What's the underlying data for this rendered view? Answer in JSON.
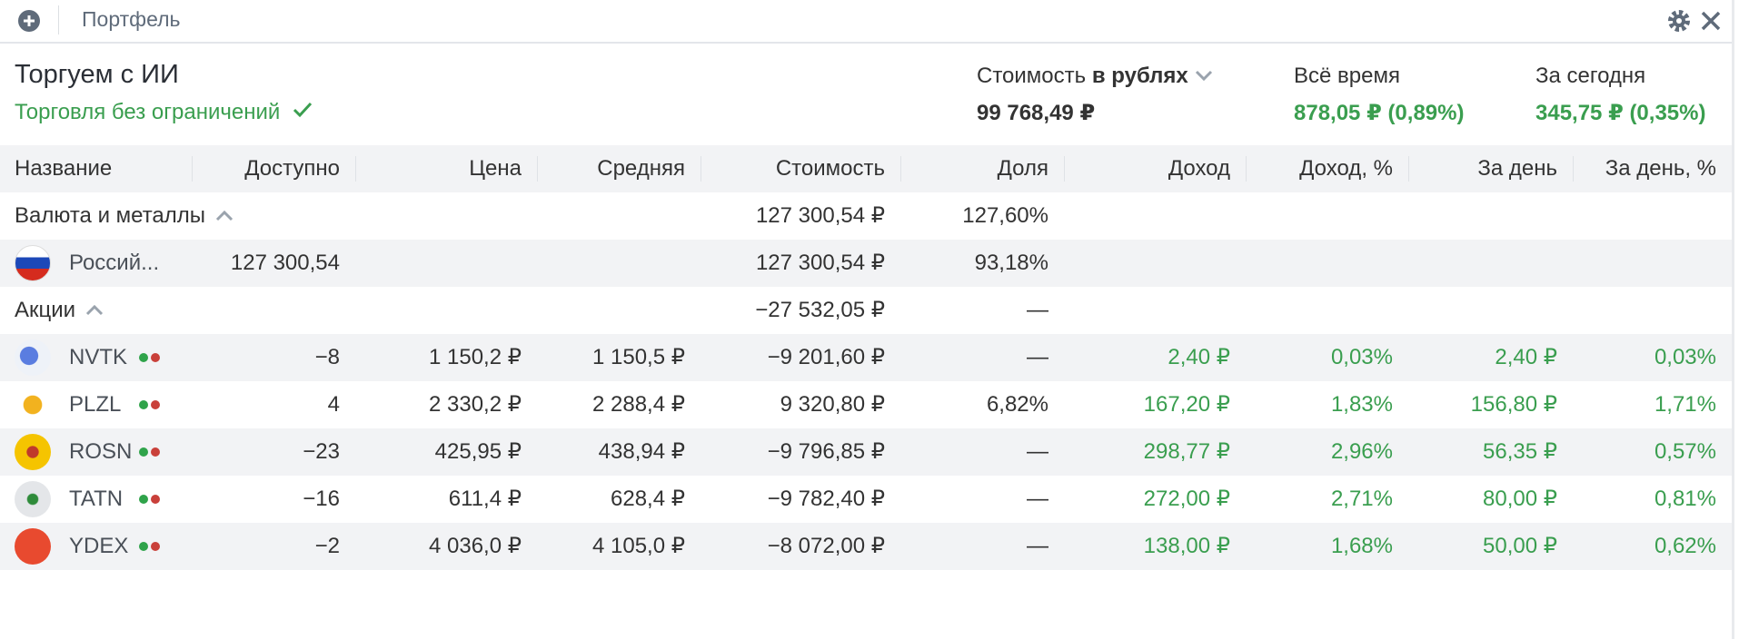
{
  "header": {
    "tab_title": "Портфель"
  },
  "account": {
    "name": "Торгуем с ИИ",
    "status": "Торговля без ограничений",
    "value_label": "Стоимость",
    "currency_label": "в рублях",
    "value": "99 768,49 ₽",
    "all_time_label": "Всё время",
    "all_time_value": "878,05 ₽ (0,89%)",
    "today_label": "За сегодня",
    "today_value": "345,75 ₽ (0,35%)"
  },
  "table": {
    "columns": [
      "Название",
      "Доступно",
      "Цена",
      "Средняя",
      "Стоимость",
      "Доля",
      "Доход",
      "Доход, %",
      "За день",
      "За день, %"
    ],
    "rows": [
      {
        "name": "Валюта и металлы",
        "value": "127 300,54 ₽",
        "share": "127,60%"
      },
      {
        "name": "Россий...",
        "available": "127 300,54",
        "value": "127 300,54 ₽",
        "share": "93,18%"
      },
      {
        "name": "Акции",
        "value": "−27 532,05 ₽",
        "share": "—"
      },
      {
        "name": "NVTK",
        "available": "−8",
        "price": "1 150,2 ₽",
        "average": "1 150,5 ₽",
        "value": "−9 201,60 ₽",
        "share": "—",
        "income": "2,40 ₽",
        "income_pct": "0,03%",
        "day": "2,40 ₽",
        "day_pct": "0,03%"
      },
      {
        "name": "PLZL",
        "available": "4",
        "price": "2 330,2 ₽",
        "average": "2 288,4 ₽",
        "value": "9 320,80 ₽",
        "share": "6,82%",
        "income": "167,20 ₽",
        "income_pct": "1,83%",
        "day": "156,80 ₽",
        "day_pct": "1,71%"
      },
      {
        "name": "ROSN",
        "available": "−23",
        "price": "425,95 ₽",
        "average": "438,94 ₽",
        "value": "−9 796,85 ₽",
        "share": "—",
        "income": "298,77 ₽",
        "income_pct": "2,96%",
        "day": "56,35 ₽",
        "day_pct": "0,57%"
      },
      {
        "name": "TATN",
        "available": "−16",
        "price": "611,4 ₽",
        "average": "628,4 ₽",
        "value": "−9 782,40 ₽",
        "share": "—",
        "income": "272,00 ₽",
        "income_pct": "2,71%",
        "day": "80,00 ₽",
        "day_pct": "0,81%"
      },
      {
        "name": "YDEX",
        "available": "−2",
        "price": "4 036,0 ₽",
        "average": "4 105,0 ₽",
        "value": "−8 072,00 ₽",
        "share": "—",
        "income": "138,00 ₽",
        "income_pct": "1,68%",
        "day": "50,00 ₽",
        "day_pct": "0,62%"
      }
    ]
  }
}
